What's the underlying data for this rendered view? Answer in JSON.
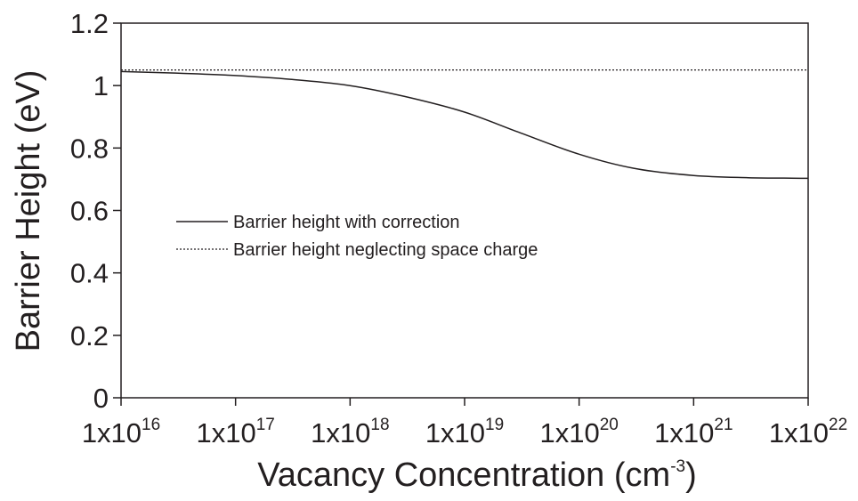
{
  "chart_data": {
    "type": "line",
    "xlabel": "Vacancy Concentration (cm",
    "xlabel_superscript": "-3",
    "xlabel_suffix": ")",
    "ylabel": "Barrier Height (eV)",
    "x_scale": "log",
    "xlim": [
      1e+16,
      1e+22
    ],
    "ylim": [
      0,
      1.2
    ],
    "x_ticks": [
      {
        "base": "1x10",
        "exp": "16"
      },
      {
        "base": "1x10",
        "exp": "17"
      },
      {
        "base": "1x10",
        "exp": "18"
      },
      {
        "base": "1x10",
        "exp": "19"
      },
      {
        "base": "1x10",
        "exp": "20"
      },
      {
        "base": "1x10",
        "exp": "21"
      },
      {
        "base": "1x10",
        "exp": "22"
      }
    ],
    "y_ticks": [
      "0",
      "0.2",
      "0.4",
      "0.6",
      "0.8",
      "1",
      "1.2"
    ],
    "grid": false,
    "legend_position": "center-left",
    "series": [
      {
        "name": "Barrier height with correction",
        "style": "solid",
        "color": "#231f20",
        "x": [
          1e+16,
          3e+16,
          1e+17,
          3e+17,
          1e+18,
          3e+18,
          1e+19,
          3e+19,
          1e+20,
          3e+20,
          1e+21,
          3e+21,
          1e+22
        ],
        "y": [
          1.045,
          1.04,
          1.032,
          1.02,
          1.0,
          0.965,
          0.915,
          0.85,
          0.78,
          0.735,
          0.712,
          0.705,
          0.703
        ]
      },
      {
        "name": "Barrier height neglecting space charge",
        "style": "dotted",
        "color": "#231f20",
        "x": [
          1e+16,
          1e+22
        ],
        "y": [
          1.05,
          1.05
        ]
      }
    ]
  }
}
